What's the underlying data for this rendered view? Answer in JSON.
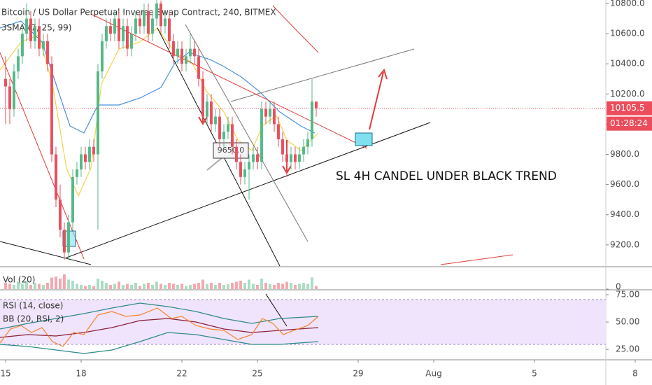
{
  "chart_data": {
    "type": "candlestick",
    "title": "Bitcoin / US Dollar Perpetual Inverse Swap Contract, 240, BITMEX",
    "indicators": [
      "3SMA (7, 25, 99)",
      "Vol (20)",
      "RSI (14, close)",
      "BB (20, RSI, 2)"
    ],
    "annotation": "SL 4H CANDEL UNDER BLACK TREND",
    "price_label": {
      "value": 9650,
      "label": "9650.0"
    },
    "last_price": 10105.5,
    "countdown": "01:28:24",
    "up_color": "#53b987",
    "down_color": "#eb4d5c",
    "ylim": [
      9060,
      10823
    ],
    "yticks": [
      {
        "value": 9200,
        "label": "9200.0"
      },
      {
        "value": 9400,
        "label": "9400.0"
      },
      {
        "value": 9600,
        "label": "9600.0"
      },
      {
        "value": 9800,
        "label": "9800.0"
      },
      {
        "value": 10000,
        "label": "10000.0"
      },
      {
        "value": 10200,
        "label": "10200.0"
      },
      {
        "value": 10400,
        "label": "10400.0"
      },
      {
        "value": 10600,
        "label": "10600.0"
      },
      {
        "value": 10800,
        "label": "10800.0"
      }
    ],
    "xlim": [
      -1.33,
      143
    ],
    "xticks": [
      {
        "value": 0,
        "label": "15"
      },
      {
        "value": 18,
        "label": "18"
      },
      {
        "value": 42,
        "label": "22"
      },
      {
        "value": 60,
        "label": "25"
      },
      {
        "value": 84,
        "label": "29"
      },
      {
        "value": 102,
        "label": "Aug"
      },
      {
        "value": 126,
        "label": "5"
      },
      {
        "value": 150,
        "label": "8"
      }
    ],
    "ohlc": [
      [
        10300,
        10450,
        10000,
        10250
      ],
      [
        10250,
        10300,
        10000,
        10100
      ],
      [
        10100,
        10400,
        10050,
        10350
      ],
      [
        10350,
        10500,
        10300,
        10450
      ],
      [
        10450,
        10650,
        10400,
        10600
      ],
      [
        10600,
        10800,
        10550,
        10700
      ],
      [
        10700,
        10750,
        10500,
        10550
      ],
      [
        10550,
        10700,
        10500,
        10650
      ],
      [
        10650,
        10700,
        10450,
        10500
      ],
      [
        10500,
        10600,
        10450,
        10550
      ],
      [
        10550,
        10600,
        10350,
        10400
      ],
      [
        10400,
        10450,
        9750,
        9800
      ],
      [
        9800,
        9850,
        9450,
        9500
      ],
      [
        9500,
        9600,
        9250,
        9300
      ],
      [
        9300,
        9350,
        9100,
        9150
      ],
      [
        9150,
        9400,
        9100,
        9350
      ],
      [
        9350,
        9700,
        9300,
        9650
      ],
      [
        9650,
        9750,
        9600,
        9700
      ],
      [
        9700,
        9850,
        9650,
        9800
      ],
      [
        9800,
        9850,
        9700,
        9750
      ],
      [
        9750,
        9900,
        9700,
        9850
      ],
      [
        9850,
        9900,
        9750,
        9800
      ],
      [
        9800,
        10400,
        9300,
        10350
      ],
      [
        10350,
        10600,
        10300,
        10550
      ],
      [
        10550,
        10700,
        10500,
        10650
      ],
      [
        10650,
        10700,
        10550,
        10600
      ],
      [
        10600,
        10750,
        10550,
        10700
      ],
      [
        10700,
        10750,
        10500,
        10550
      ],
      [
        10550,
        10700,
        10500,
        10650
      ],
      [
        10650,
        10700,
        10450,
        10500
      ],
      [
        10500,
        10650,
        10450,
        10600
      ],
      [
        10600,
        10750,
        10550,
        10700
      ],
      [
        10700,
        10750,
        10600,
        10650
      ],
      [
        10650,
        10800,
        10600,
        10750
      ],
      [
        10750,
        10800,
        10550,
        10600
      ],
      [
        10600,
        10750,
        10550,
        10700
      ],
      [
        10700,
        10850,
        10650,
        10800
      ],
      [
        10800,
        10820,
        10600,
        10650
      ],
      [
        10650,
        10750,
        10600,
        10700
      ],
      [
        10700,
        10750,
        10500,
        10550
      ],
      [
        10550,
        10600,
        10400,
        10450
      ],
      [
        10450,
        10550,
        10400,
        10500
      ],
      [
        10500,
        10550,
        10350,
        10400
      ],
      [
        10400,
        10500,
        10350,
        10450
      ],
      [
        10450,
        10600,
        10400,
        10500
      ],
      [
        10500,
        10550,
        10400,
        10450
      ],
      [
        10450,
        10500,
        10250,
        10300
      ],
      [
        10300,
        10350,
        10000,
        10050
      ],
      [
        10050,
        10200,
        10000,
        10150
      ],
      [
        10150,
        10200,
        9950,
        10000
      ],
      [
        10000,
        10100,
        9950,
        10050
      ],
      [
        10050,
        10100,
        9850,
        9900
      ],
      [
        9900,
        10000,
        9850,
        9950
      ],
      [
        9950,
        10050,
        9900,
        10000
      ],
      [
        10000,
        10050,
        9800,
        9850
      ],
      [
        9850,
        9900,
        9700,
        9750
      ],
      [
        9750,
        9800,
        9600,
        9650
      ],
      [
        9650,
        9750,
        9600,
        9700
      ],
      [
        9700,
        9800,
        9500,
        9750
      ],
      [
        9750,
        9850,
        9700,
        9800
      ],
      [
        9800,
        9850,
        9700,
        9750
      ],
      [
        9750,
        10150,
        9700,
        10100
      ],
      [
        10100,
        10150,
        10000,
        10050
      ],
      [
        10050,
        10150,
        10000,
        10100
      ],
      [
        10100,
        10150,
        9950,
        10000
      ],
      [
        10000,
        10050,
        9850,
        9900
      ],
      [
        9900,
        9950,
        9750,
        9800
      ],
      [
        9800,
        9850,
        9650,
        9750
      ],
      [
        9750,
        9850,
        9700,
        9800
      ],
      [
        9800,
        9850,
        9700,
        9750
      ],
      [
        9750,
        9850,
        9700,
        9800
      ],
      [
        9800,
        9900,
        9750,
        9850
      ],
      [
        9850,
        9950,
        9800,
        9900
      ],
      [
        9900,
        10300,
        9850,
        10150
      ],
      [
        10150,
        10150,
        10050,
        10105.5
      ]
    ],
    "volume": [
      30,
      25,
      20,
      35,
      25,
      40,
      20,
      30,
      25,
      20,
      30,
      55,
      60,
      50,
      70,
      45,
      40,
      25,
      20,
      15,
      20,
      15,
      50,
      40,
      30,
      20,
      25,
      35,
      20,
      25,
      20,
      30,
      15,
      25,
      30,
      20,
      35,
      25,
      20,
      30,
      25,
      20,
      25,
      15,
      20,
      25,
      30,
      45,
      25,
      30,
      20,
      30,
      20,
      25,
      30,
      35,
      40,
      30,
      45,
      25,
      20,
      50,
      30,
      25,
      20,
      30,
      25,
      35,
      30,
      20,
      25,
      30,
      25,
      55,
      15
    ],
    "volume_ylim": [
      0,
      100
    ],
    "volume_yticks": [
      0
    ],
    "rsi_ylim": [
      15.5,
      78.8
    ],
    "rsi_yticks": [
      {
        "value": 25,
        "label": "25.00"
      },
      {
        "value": 50,
        "label": "50.00"
      },
      {
        "value": 75,
        "label": "75.00"
      }
    ]
  }
}
